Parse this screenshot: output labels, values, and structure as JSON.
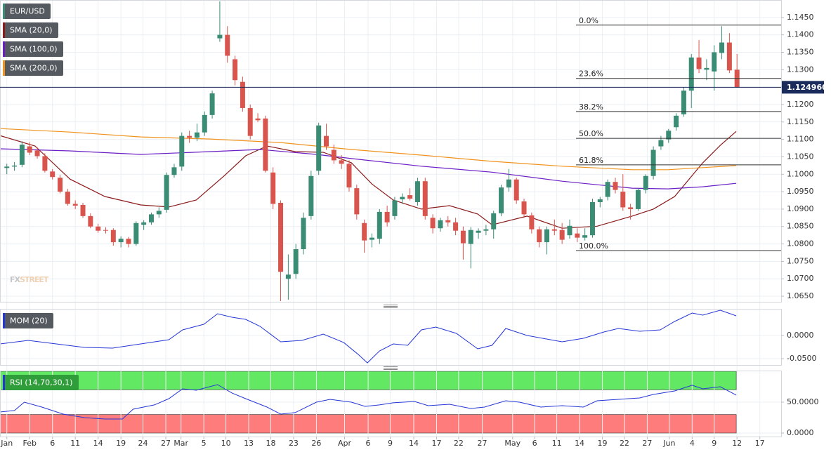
{
  "chart_data": [
    {
      "type": "candlestick",
      "name": "EUR/USD",
      "up_color": "#3b8c74",
      "down_color": "#d9544d",
      "xlim": [
        -0.9,
        101.8
      ],
      "ylim": [
        1.0634,
        1.15
      ],
      "grid": true,
      "watermark": [
        "FX",
        "STREET"
      ],
      "yticks": [
        {
          "value": 1.145,
          "label": "1.1450"
        },
        {
          "value": 1.14,
          "label": "1.1400"
        },
        {
          "value": 1.135,
          "label": "1.1350"
        },
        {
          "value": 1.13,
          "label": "1.1300"
        },
        {
          "value": 1.125,
          "label": "1.1250"
        },
        {
          "value": 1.12,
          "label": "1.1200"
        },
        {
          "value": 1.115,
          "label": "1.1150"
        },
        {
          "value": 1.11,
          "label": "1.1100"
        },
        {
          "value": 1.105,
          "label": "1.1050"
        },
        {
          "value": 1.1,
          "label": "1.1000"
        },
        {
          "value": 1.095,
          "label": "1.0950"
        },
        {
          "value": 1.09,
          "label": "1.0900"
        },
        {
          "value": 1.085,
          "label": "1.0850"
        },
        {
          "value": 1.08,
          "label": "1.0800"
        },
        {
          "value": 1.075,
          "label": "1.0750"
        },
        {
          "value": 1.07,
          "label": "1.0700"
        },
        {
          "value": 1.065,
          "label": "1.0650"
        }
      ],
      "x": [
        0,
        1,
        2,
        3,
        4,
        5,
        6,
        7,
        8,
        9,
        10,
        11,
        12,
        13,
        14,
        15,
        16,
        17,
        18,
        19,
        20,
        21,
        22,
        23,
        24,
        25,
        26,
        27,
        28,
        29,
        30,
        31,
        32,
        33,
        34,
        35,
        36,
        37,
        38,
        39,
        40,
        41,
        42,
        43,
        44,
        45,
        46,
        47,
        48,
        49,
        50,
        51,
        52,
        53,
        54,
        55,
        56,
        57,
        58,
        59,
        60,
        61,
        62,
        63,
        64,
        65,
        66,
        67,
        68,
        69,
        70,
        71,
        72,
        73,
        74,
        75,
        76,
        77,
        78,
        79,
        80,
        81,
        82,
        83,
        84,
        85,
        86,
        87,
        88,
        89,
        90,
        91,
        92,
        93,
        94,
        95,
        96
      ],
      "open": [
        1.1018,
        1.1022,
        1.1027,
        1.108,
        1.1068,
        1.1052,
        1.1008,
        1.099,
        1.095,
        1.0915,
        1.0912,
        1.088,
        1.085,
        1.084,
        1.084,
        1.0805,
        1.0815,
        1.08,
        1.0855,
        1.0862,
        1.0885,
        1.0898,
        1.0998,
        1.1022,
        1.111,
        1.1105,
        1.112,
        1.117,
        1.139,
        1.14,
        1.133,
        1.1265,
        1.119,
        1.116,
        1.116,
        1.1005,
        1.0918,
        1.07,
        1.0714,
        1.0785,
        1.088,
        1.101,
        1.111,
        1.107,
        1.104,
        1.103,
        1.096,
        1.086,
        1.0812,
        1.0815,
        1.0892,
        1.088,
        1.0928,
        1.094,
        1.092,
        1.098,
        1.0875,
        1.0845,
        1.0868,
        1.0862,
        1.0838,
        1.08,
        1.0832,
        1.0838,
        1.0842,
        1.0888,
        1.0962,
        1.0985,
        1.0922,
        1.0882,
        1.0842,
        1.0805,
        1.0842,
        1.084,
        1.0825,
        1.083,
        1.0818,
        1.0825,
        1.092,
        1.0935,
        1.0978,
        1.095,
        1.0905,
        1.09,
        1.0955,
        1.0995,
        1.108,
        1.11,
        1.1135,
        1.1172,
        1.124,
        1.1335,
        1.13,
        1.1295,
        1.1348,
        1.1378,
        1.13
      ],
      "high": [
        1.103,
        1.1035,
        1.1095,
        1.1092,
        1.1078,
        1.106,
        1.1015,
        1.0998,
        1.0958,
        1.0925,
        1.0918,
        1.0888,
        1.0858,
        1.0848,
        1.0845,
        1.0822,
        1.082,
        1.0865,
        1.0868,
        1.089,
        1.0905,
        1.1005,
        1.103,
        1.112,
        1.1125,
        1.1145,
        1.118,
        1.124,
        1.1496,
        1.1425,
        1.134,
        1.128,
        1.12,
        1.1175,
        1.1168,
        1.102,
        1.0925,
        1.077,
        1.08,
        1.089,
        1.101,
        1.1148,
        1.1145,
        1.1085,
        1.1055,
        1.104,
        1.097,
        1.087,
        1.083,
        1.09,
        1.091,
        1.0935,
        1.0945,
        1.096,
        1.099,
        1.099,
        1.0885,
        1.0875,
        1.088,
        1.0875,
        1.085,
        1.0848,
        1.0845,
        1.0855,
        1.0895,
        1.097,
        1.1015,
        1.099,
        1.093,
        1.089,
        1.085,
        1.085,
        1.087,
        1.086,
        1.087,
        1.0845,
        1.0845,
        1.093,
        1.0935,
        1.0985,
        1.099,
        1.1,
        1.0915,
        1.096,
        1.1,
        1.108,
        1.111,
        1.113,
        1.1175,
        1.125,
        1.1345,
        1.1385,
        1.133,
        1.137,
        1.1425,
        1.1405,
        1.1345
      ],
      "low": [
        1.1,
        1.101,
        1.102,
        1.1055,
        1.1045,
        1.1005,
        1.0985,
        1.0945,
        1.091,
        1.09,
        1.0875,
        1.0845,
        1.0832,
        1.083,
        1.0795,
        1.079,
        1.079,
        1.0795,
        1.084,
        1.0855,
        1.0875,
        1.089,
        1.099,
        1.101,
        1.109,
        1.1095,
        1.111,
        1.116,
        1.138,
        1.132,
        1.1255,
        1.118,
        1.11,
        1.115,
        1.1005,
        1.09,
        1.0636,
        1.064,
        1.07,
        1.077,
        1.087,
        1.0998,
        1.107,
        1.103,
        1.1015,
        1.095,
        1.087,
        1.0775,
        1.079,
        1.08,
        1.085,
        1.087,
        1.0915,
        1.0925,
        1.091,
        1.087,
        1.083,
        1.0835,
        1.085,
        1.0825,
        1.0755,
        1.073,
        1.0815,
        1.0825,
        1.0815,
        1.088,
        1.095,
        1.0915,
        1.0875,
        1.083,
        1.079,
        1.077,
        1.0825,
        1.08,
        1.0815,
        1.0805,
        1.081,
        1.0818,
        1.0905,
        1.0925,
        1.0945,
        1.0895,
        1.087,
        1.0895,
        1.0945,
        1.0985,
        1.107,
        1.109,
        1.1125,
        1.1165,
        1.119,
        1.129,
        1.127,
        1.124,
        1.133,
        1.129,
        1.1248
      ],
      "close": [
        1.1022,
        1.1025,
        1.1085,
        1.1062,
        1.1052,
        1.101,
        1.0992,
        1.095,
        1.0915,
        1.091,
        1.088,
        1.085,
        1.0838,
        1.0838,
        1.0805,
        1.0815,
        1.08,
        1.086,
        1.0862,
        1.0885,
        1.0895,
        1.0998,
        1.102,
        1.111,
        1.1105,
        1.112,
        1.117,
        1.1232,
        1.14,
        1.134,
        1.127,
        1.119,
        1.111,
        1.1155,
        1.101,
        1.0915,
        1.072,
        1.0712,
        1.0785,
        1.0875,
        1.0995,
        1.114,
        1.108,
        1.104,
        1.103,
        1.0962,
        1.0885,
        1.081,
        1.0818,
        1.0892,
        1.0862,
        1.0925,
        1.0935,
        1.093,
        1.098,
        1.088,
        1.0845,
        1.0868,
        1.0862,
        1.0838,
        1.0802,
        1.084,
        1.0838,
        1.0842,
        1.0888,
        1.0962,
        1.0985,
        1.0925,
        1.0885,
        1.0842,
        1.0805,
        1.0842,
        1.0838,
        1.0812,
        1.0852,
        1.0818,
        1.0825,
        1.092,
        1.0928,
        1.0978,
        1.0955,
        1.0905,
        1.09,
        1.0955,
        1.0995,
        1.107,
        1.1098,
        1.1125,
        1.1168,
        1.124,
        1.1335,
        1.1302,
        1.1305,
        1.135,
        1.1378,
        1.1298,
        1.12496
      ],
      "lines": [
        {
          "name": "SMA (20,0)",
          "color": "#8b1a1a",
          "x": [
            -0.9,
            3.7,
            8.3,
            12.9,
            17.6,
            21.3,
            24.9,
            28.6,
            31.4,
            34.2,
            37.9,
            41.6,
            45.3,
            48.0,
            50.8,
            54.5,
            58.2,
            61.9,
            63.8,
            68.4,
            73.0,
            77.6,
            82.2,
            85.0,
            87.8,
            91.5,
            93.8,
            95.9
          ],
          "values": [
            1.1111,
            1.1081,
            1.0986,
            1.0936,
            1.0912,
            1.0906,
            1.0926,
            1.0996,
            1.1053,
            1.1081,
            1.1065,
            1.1063,
            1.1033,
            1.0972,
            1.0926,
            1.09,
            1.091,
            1.0886,
            1.0855,
            1.088,
            1.0845,
            1.0851,
            1.088,
            1.09,
            1.0936,
            1.1033,
            1.1083,
            1.1123
          ]
        },
        {
          "name": "SMA (100,0)",
          "color": "#6a1fc4",
          "x": [
            -0.9,
            8.3,
            17.6,
            26.8,
            33.3,
            40.7,
            45.3,
            54.5,
            63.8,
            73.0,
            77.6,
            82.2,
            86.9,
            91.5,
            95.9
          ],
          "values": [
            1.1073,
            1.1067,
            1.1057,
            1.1065,
            1.1071,
            1.1057,
            1.1045,
            1.1023,
            1.1006,
            1.098,
            1.097,
            1.096,
            1.0958,
            1.0964,
            1.0974
          ]
        },
        {
          "name": "SMA (200,0)",
          "color": "#f0931e",
          "x": [
            -0.9,
            8.3,
            17.6,
            26.8,
            36.0,
            45.3,
            54.5,
            63.8,
            73.0,
            82.2,
            86.9,
            91.5,
            95.9
          ],
          "values": [
            1.1131,
            1.1121,
            1.1107,
            1.1101,
            1.1091,
            1.1071,
            1.1055,
            1.1037,
            1.1023,
            1.1013,
            1.1013,
            1.1019,
            1.1025
          ]
        }
      ],
      "fib": [
        {
          "label": "0.0%",
          "value": 1.1428
        },
        {
          "label": "23.6%",
          "value": 1.1275
        },
        {
          "label": "38.2%",
          "value": 1.118
        },
        {
          "label": "50.0%",
          "value": 1.1103
        },
        {
          "label": "61.8%",
          "value": 1.1027
        },
        {
          "label": "100.0%",
          "value": 1.0781
        }
      ],
      "last": {
        "value": 1.12496,
        "label": "1.124960"
      },
      "last_color": "#1b2b5b"
    },
    {
      "type": "line",
      "xlim": [
        -0.9,
        101.8
      ],
      "ylim": [
        -0.0636,
        0.0576
      ],
      "grid": true,
      "yticks": [
        {
          "value": 0,
          "label": "0.0000"
        },
        {
          "value": -0.05,
          "label": "-0.0500"
        }
      ],
      "series": [
        {
          "name": "MOM (20)",
          "color": "#2536d6",
          "x": [
            -0.9,
            2.8,
            6.5,
            10.2,
            13.9,
            17.6,
            21.3,
            23.1,
            25.9,
            27.7,
            29.6,
            31.4,
            33.3,
            36.0,
            38.8,
            41.6,
            44.3,
            46.2,
            47.4,
            49.0,
            50.8,
            52.7,
            54.5,
            56.4,
            59.1,
            61.9,
            63.8,
            65.6,
            68.4,
            73.0,
            75.8,
            78.5,
            80.4,
            83.2,
            85.9,
            87.8,
            90.1,
            91.5,
            93.8,
            95.9
          ],
          "values": [
            -0.0182,
            -0.0106,
            -0.0182,
            -0.0258,
            -0.0273,
            -0.0182,
            -0.0091,
            0.0121,
            0.0242,
            0.047,
            0.0394,
            0.0348,
            0.0197,
            -0.0136,
            -0.0106,
            0.003,
            -0.0152,
            -0.0409,
            -0.0591,
            -0.0333,
            -0.0182,
            -0.0212,
            0.0121,
            0.0182,
            0.0045,
            -0.0288,
            -0.0212,
            0.0152,
            0,
            -0.0136,
            -0.0061,
            0.0076,
            0.0152,
            0.0091,
            0.0121,
            0.0303,
            0.0485,
            0.0439,
            0.0545,
            0.0424
          ]
        }
      ]
    },
    {
      "type": "line",
      "xlim": [
        -0.9,
        101.8
      ],
      "ylim": [
        -5.7,
        101.1
      ],
      "grid": true,
      "yticks": [
        {
          "value": 50,
          "label": "50.0000"
        },
        {
          "value": 0,
          "label": "0.0000"
        }
      ],
      "bands": [
        {
          "from": 70,
          "to": 100,
          "color": "#63e863"
        },
        {
          "from": 0,
          "to": 30,
          "color": "#ff7c7c"
        }
      ],
      "legend_color": "#2f9e3a",
      "series": [
        {
          "name": "RSI (14,70,30,1)",
          "color": "#2536d6",
          "x": [
            -0.9,
            1.0,
            2.3,
            4.6,
            7.4,
            10.2,
            12.9,
            15.2,
            16.6,
            19.4,
            21.3,
            23.1,
            24.9,
            27.7,
            29.6,
            31.4,
            34.2,
            36.0,
            37.9,
            40.7,
            42.5,
            45.3,
            47.1,
            49.0,
            50.8,
            53.6,
            55.4,
            58.2,
            61.0,
            62.8,
            65.6,
            67.4,
            70.2,
            73.0,
            75.8,
            77.6,
            80.4,
            83.2,
            85.0,
            87.8,
            90.1,
            91.5,
            93.8,
            95.9
          ],
          "values": [
            34.1,
            36.4,
            50.0,
            42.0,
            30.7,
            25.0,
            22.7,
            22.7,
            38.6,
            45.5,
            55.7,
            71.6,
            69.3,
            78.4,
            64.8,
            55.7,
            42.0,
            30.7,
            33.0,
            50.0,
            54.5,
            50.0,
            43.2,
            45.5,
            48.9,
            51.1,
            44.3,
            46.6,
            39.8,
            42.0,
            52.3,
            50.0,
            42.0,
            44.3,
            42.0,
            52.3,
            54.5,
            56.8,
            62.5,
            68.2,
            77.3,
            71.6,
            75.0,
            61.4
          ]
        }
      ],
      "xticks": [
        {
          "value": 0,
          "label": "Jan"
        },
        {
          "value": 3.0,
          "label": "Feb"
        },
        {
          "value": 6.0,
          "label": "6"
        },
        {
          "value": 9.0,
          "label": "11"
        },
        {
          "value": 12.0,
          "label": "14"
        },
        {
          "value": 15.0,
          "label": "19"
        },
        {
          "value": 17.9,
          "label": "24"
        },
        {
          "value": 20.9,
          "label": "27"
        },
        {
          "value": 22.9,
          "label": "Mar"
        },
        {
          "value": 25.9,
          "label": "5"
        },
        {
          "value": 28.8,
          "label": "10"
        },
        {
          "value": 31.8,
          "label": "13"
        },
        {
          "value": 34.7,
          "label": "18"
        },
        {
          "value": 37.7,
          "label": "23"
        },
        {
          "value": 40.7,
          "label": "26"
        },
        {
          "value": 44.4,
          "label": "Apr"
        },
        {
          "value": 47.5,
          "label": "6"
        },
        {
          "value": 50.4,
          "label": "9"
        },
        {
          "value": 53.5,
          "label": "14"
        },
        {
          "value": 56.5,
          "label": "17"
        },
        {
          "value": 59.4,
          "label": "22"
        },
        {
          "value": 62.5,
          "label": "27"
        },
        {
          "value": 66.5,
          "label": "May"
        },
        {
          "value": 69.4,
          "label": "6"
        },
        {
          "value": 72.3,
          "label": "11"
        },
        {
          "value": 75.3,
          "label": "14"
        },
        {
          "value": 78.3,
          "label": "19"
        },
        {
          "value": 81.2,
          "label": "22"
        },
        {
          "value": 84.2,
          "label": "27"
        },
        {
          "value": 87.1,
          "label": "Jun"
        },
        {
          "value": 90.1,
          "label": "4"
        },
        {
          "value": 93.0,
          "label": "9"
        },
        {
          "value": 96.0,
          "label": "12"
        },
        {
          "value": 99.0,
          "label": "17"
        }
      ]
    }
  ]
}
